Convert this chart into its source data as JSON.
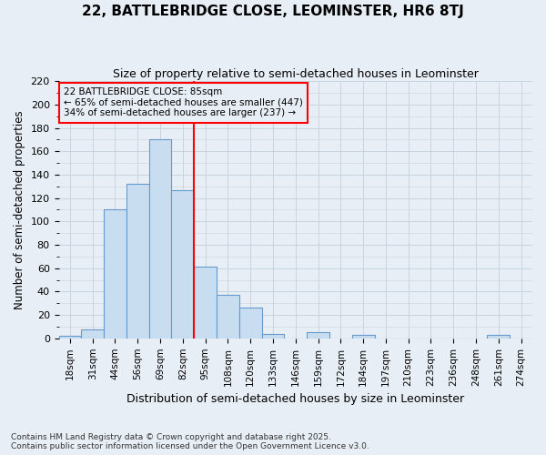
{
  "title": "22, BATTLEBRIDGE CLOSE, LEOMINSTER, HR6 8TJ",
  "subtitle": "Size of property relative to semi-detached houses in Leominster",
  "xlabel": "Distribution of semi-detached houses by size in Leominster",
  "ylabel": "Number of semi-detached properties",
  "categories": [
    "18sqm",
    "31sqm",
    "44sqm",
    "56sqm",
    "69sqm",
    "82sqm",
    "95sqm",
    "108sqm",
    "120sqm",
    "133sqm",
    "146sqm",
    "159sqm",
    "172sqm",
    "184sqm",
    "197sqm",
    "210sqm",
    "223sqm",
    "236sqm",
    "248sqm",
    "261sqm",
    "274sqm"
  ],
  "values": [
    2,
    8,
    110,
    132,
    170,
    127,
    61,
    37,
    26,
    4,
    0,
    5,
    0,
    3,
    0,
    0,
    0,
    0,
    0,
    3,
    0
  ],
  "bar_color": "#c8ddf0",
  "bar_edge_color": "#6699cc",
  "grid_color": "#c8d4e0",
  "bg_color": "#e8eef5",
  "vline_color": "red",
  "annotation_text": "22 BATTLEBRIDGE CLOSE: 85sqm\n← 65% of semi-detached houses are smaller (447)\n34% of semi-detached houses are larger (237) →",
  "annotation_box_color": "red",
  "ylim": [
    0,
    220
  ],
  "yticks": [
    0,
    20,
    40,
    60,
    80,
    100,
    120,
    140,
    160,
    180,
    200,
    220
  ],
  "footer": "Contains HM Land Registry data © Crown copyright and database right 2025.\nContains public sector information licensed under the Open Government Licence v3.0.",
  "title_fontsize": 11,
  "subtitle_fontsize": 9
}
